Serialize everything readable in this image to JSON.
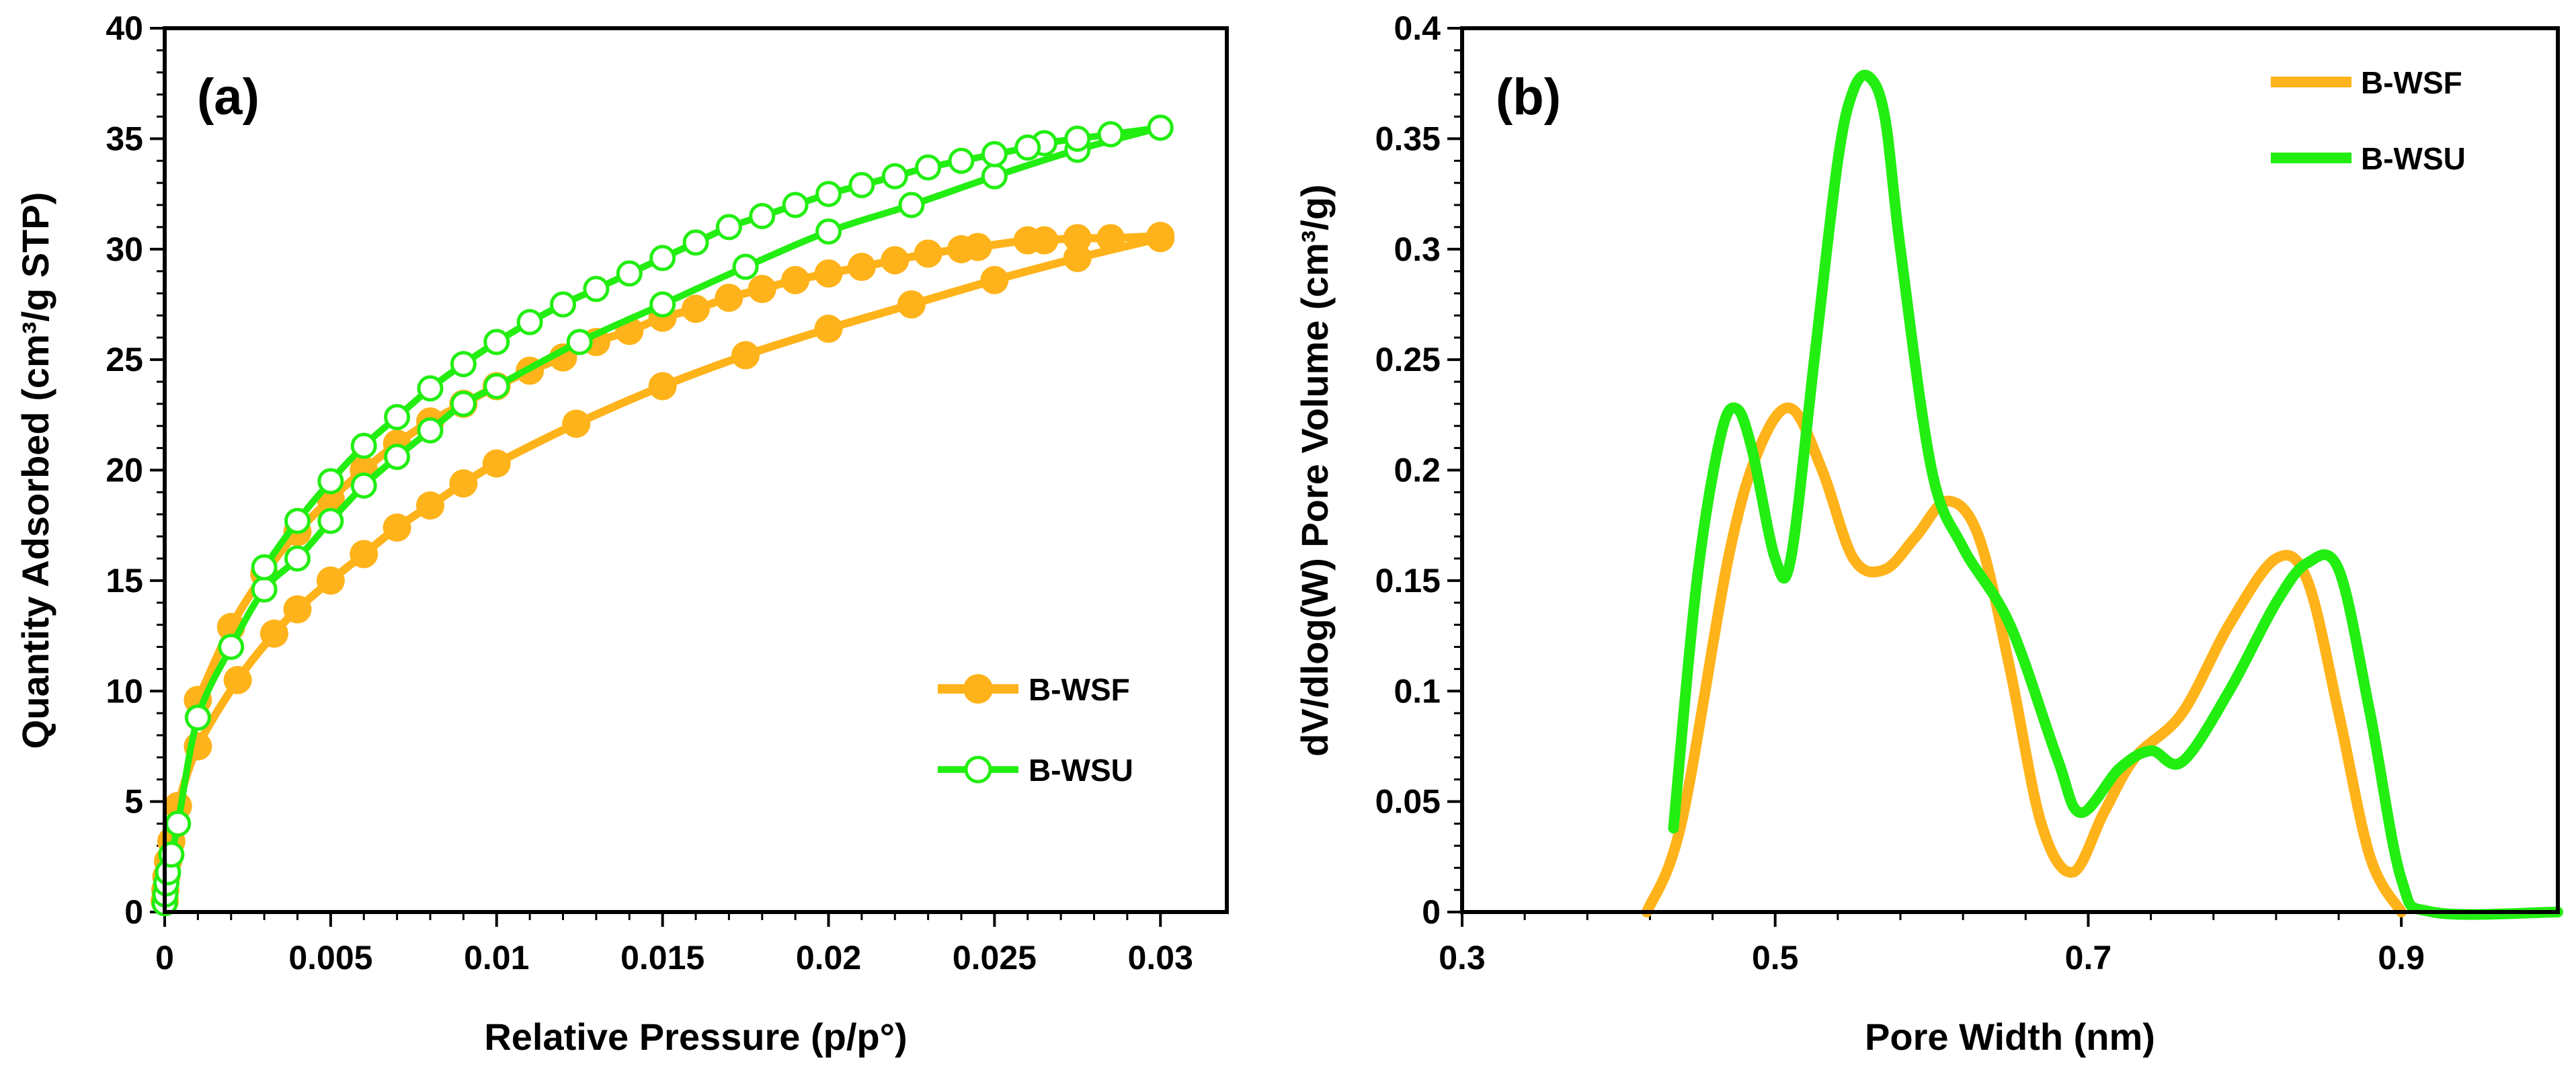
{
  "chart_data": [
    {
      "panel": "(a)",
      "type": "line",
      "xlabel": "Relative Pressure (p/p°)",
      "ylabel": "Quantity Adsorbed (cm³/g STP)",
      "xlim": [
        0,
        0.032
      ],
      "ylim": [
        0,
        40
      ],
      "xticks": [
        0,
        0.005,
        0.01,
        0.015,
        0.02,
        0.025,
        0.03
      ],
      "xtick_labels": [
        "0",
        "0.005",
        "0.01",
        "0.015",
        "0.02",
        "0.025",
        "0.03"
      ],
      "yticks": [
        0,
        5,
        10,
        15,
        20,
        25,
        30,
        35,
        40
      ],
      "ytick_labels": [
        "0",
        "5",
        "10",
        "15",
        "20",
        "25",
        "30",
        "35",
        "40"
      ],
      "legend_position": "bottom-right",
      "series": [
        {
          "name": "B-WSF",
          "color": "#FFB31A",
          "marker": "filled-circle",
          "adsorption": {
            "x": [
              0,
              2e-05,
              5e-05,
              0.0001,
              0.0002,
              0.0004,
              0.001,
              0.0022,
              0.0033,
              0.004,
              0.005,
              0.006,
              0.007,
              0.008,
              0.009,
              0.01,
              0.0124,
              0.015,
              0.0175,
              0.02,
              0.0225,
              0.025,
              0.0275,
              0.03
            ],
            "y": [
              0.5,
              1.0,
              1.6,
              2.3,
              3.2,
              4.8,
              7.5,
              10.5,
              12.6,
              13.7,
              15.0,
              16.2,
              17.4,
              18.4,
              19.4,
              20.3,
              22.1,
              23.8,
              25.2,
              26.4,
              27.5,
              28.6,
              29.6,
              30.5
            ]
          },
          "desorption": {
            "x": [
              0.03,
              0.0285,
              0.0275,
              0.0265,
              0.026,
              0.0245,
              0.024,
              0.023,
              0.022,
              0.021,
              0.02,
              0.019,
              0.018,
              0.017,
              0.016,
              0.015,
              0.014,
              0.013,
              0.012,
              0.011,
              0.01,
              0.009,
              0.008,
              0.007,
              0.006,
              0.005,
              0.004,
              0.003,
              0.002,
              0.001
            ],
            "y": [
              30.6,
              30.5,
              30.5,
              30.4,
              30.4,
              30.1,
              30.0,
              29.8,
              29.5,
              29.2,
              28.9,
              28.6,
              28.2,
              27.8,
              27.3,
              26.9,
              26.3,
              25.8,
              25.1,
              24.5,
              23.8,
              23.0,
              22.2,
              21.2,
              20.0,
              18.7,
              17.2,
              15.3,
              12.9,
              9.6
            ]
          }
        },
        {
          "name": "B-WSU",
          "color": "#22EE11",
          "marker": "open-circle",
          "adsorption": {
            "x": [
              0,
              2e-05,
              5e-05,
              0.0001,
              0.0002,
              0.0004,
              0.001,
              0.002,
              0.003,
              0.004,
              0.005,
              0.006,
              0.007,
              0.008,
              0.009,
              0.01,
              0.0125,
              0.015,
              0.0175,
              0.02,
              0.0225,
              0.025,
              0.0275,
              0.03
            ],
            "y": [
              0.4,
              0.8,
              1.3,
              1.8,
              2.6,
              4.0,
              8.8,
              12.0,
              14.6,
              16.0,
              17.7,
              19.3,
              20.6,
              21.8,
              23.0,
              23.8,
              25.8,
              27.5,
              29.2,
              30.8,
              32.0,
              33.3,
              34.5,
              35.5
            ]
          },
          "desorption": {
            "x": [
              0.03,
              0.0285,
              0.0275,
              0.0265,
              0.026,
              0.025,
              0.024,
              0.023,
              0.022,
              0.021,
              0.02,
              0.019,
              0.018,
              0.017,
              0.016,
              0.015,
              0.014,
              0.013,
              0.012,
              0.011,
              0.01,
              0.009,
              0.008,
              0.007,
              0.006,
              0.005,
              0.004,
              0.003
            ],
            "y": [
              35.5,
              35.2,
              35.0,
              34.8,
              34.6,
              34.3,
              34.0,
              33.7,
              33.3,
              32.9,
              32.5,
              32.0,
              31.5,
              31.0,
              30.3,
              29.6,
              28.9,
              28.2,
              27.5,
              26.7,
              25.8,
              24.8,
              23.7,
              22.4,
              21.1,
              19.5,
              17.7,
              15.6
            ]
          }
        }
      ]
    },
    {
      "panel": "(b)",
      "type": "line",
      "xlabel": "Pore Width (nm)",
      "ylabel": "dV/dlog(W) Pore Volume (cm³/g)",
      "xlim": [
        0.3,
        1.0
      ],
      "ylim": [
        0,
        0.4
      ],
      "xticks": [
        0.3,
        0.5,
        0.7,
        0.9
      ],
      "xtick_labels": [
        "0.3",
        "0.5",
        "0.7",
        "0.9"
      ],
      "yticks": [
        0,
        0.05,
        0.1,
        0.15,
        0.2,
        0.25,
        0.3,
        0.35,
        0.4
      ],
      "ytick_labels": [
        "0",
        "0.05",
        "0.1",
        "0.15",
        "0.2",
        "0.25",
        "0.3",
        "0.35",
        "0.4"
      ],
      "legend_position": "top-right",
      "series": [
        {
          "name": "B-WSF",
          "color": "#FFB31A",
          "x": [
            0.418,
            0.44,
            0.47,
            0.49,
            0.51,
            0.53,
            0.55,
            0.57,
            0.59,
            0.61,
            0.63,
            0.65,
            0.67,
            0.69,
            0.71,
            0.73,
            0.76,
            0.79,
            0.82,
            0.84,
            0.86,
            0.88,
            0.9
          ],
          "y": [
            0.0,
            0.04,
            0.16,
            0.21,
            0.228,
            0.2,
            0.16,
            0.155,
            0.17,
            0.186,
            0.17,
            0.11,
            0.04,
            0.018,
            0.045,
            0.07,
            0.09,
            0.13,
            0.16,
            0.15,
            0.09,
            0.025,
            0.0
          ]
        },
        {
          "name": "B-WSU",
          "color": "#22EE11",
          "x": [
            0.435,
            0.45,
            0.465,
            0.475,
            0.485,
            0.5,
            0.51,
            0.525,
            0.54,
            0.55,
            0.56,
            0.57,
            0.58,
            0.6,
            0.62,
            0.65,
            0.68,
            0.695,
            0.72,
            0.74,
            0.76,
            0.79,
            0.82,
            0.84,
            0.86,
            0.88,
            0.9,
            0.92,
            1.0
          ],
          "y": [
            0.038,
            0.15,
            0.215,
            0.228,
            0.21,
            0.16,
            0.16,
            0.25,
            0.34,
            0.372,
            0.378,
            0.36,
            0.3,
            0.2,
            0.165,
            0.13,
            0.07,
            0.045,
            0.065,
            0.073,
            0.068,
            0.1,
            0.14,
            0.158,
            0.155,
            0.09,
            0.015,
            0.0,
            0.0
          ]
        }
      ]
    }
  ]
}
